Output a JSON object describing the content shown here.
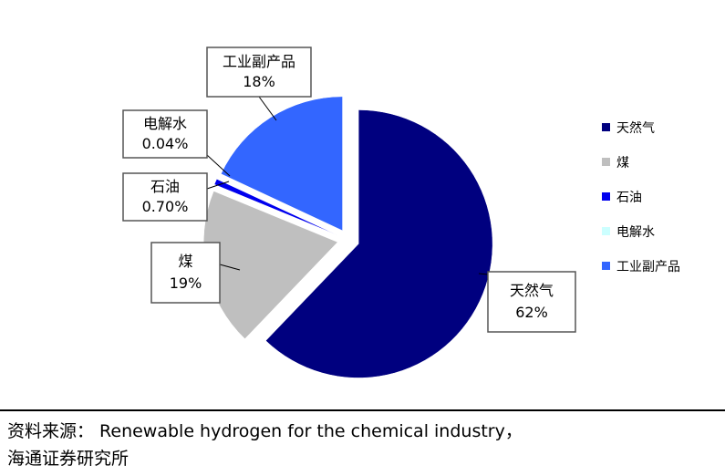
{
  "chart_data": {
    "type": "pie",
    "title": "",
    "slices": [
      {
        "label": "天然气",
        "value": 62,
        "value_text": "62%",
        "color": "#00007f"
      },
      {
        "label": "煤",
        "value": 19,
        "value_text": "19%",
        "color": "#bfbfbf"
      },
      {
        "label": "石油",
        "value": 0.7,
        "value_text": "0.70%",
        "color": "#0000ee"
      },
      {
        "label": "电解水",
        "value": 0.04,
        "value_text": "0.04%",
        "color": "#ccffff"
      },
      {
        "label": "工业副产品",
        "value": 18,
        "value_text": "18%",
        "color": "#3366ff"
      }
    ],
    "legend": {
      "position": "right",
      "items": [
        "天然气",
        "煤",
        "石油",
        "电解水",
        "工业副产品"
      ]
    }
  },
  "source": {
    "line1": "资料来源： Renewable hydrogen for the chemical industry，",
    "line2": "海通证券研究所"
  }
}
